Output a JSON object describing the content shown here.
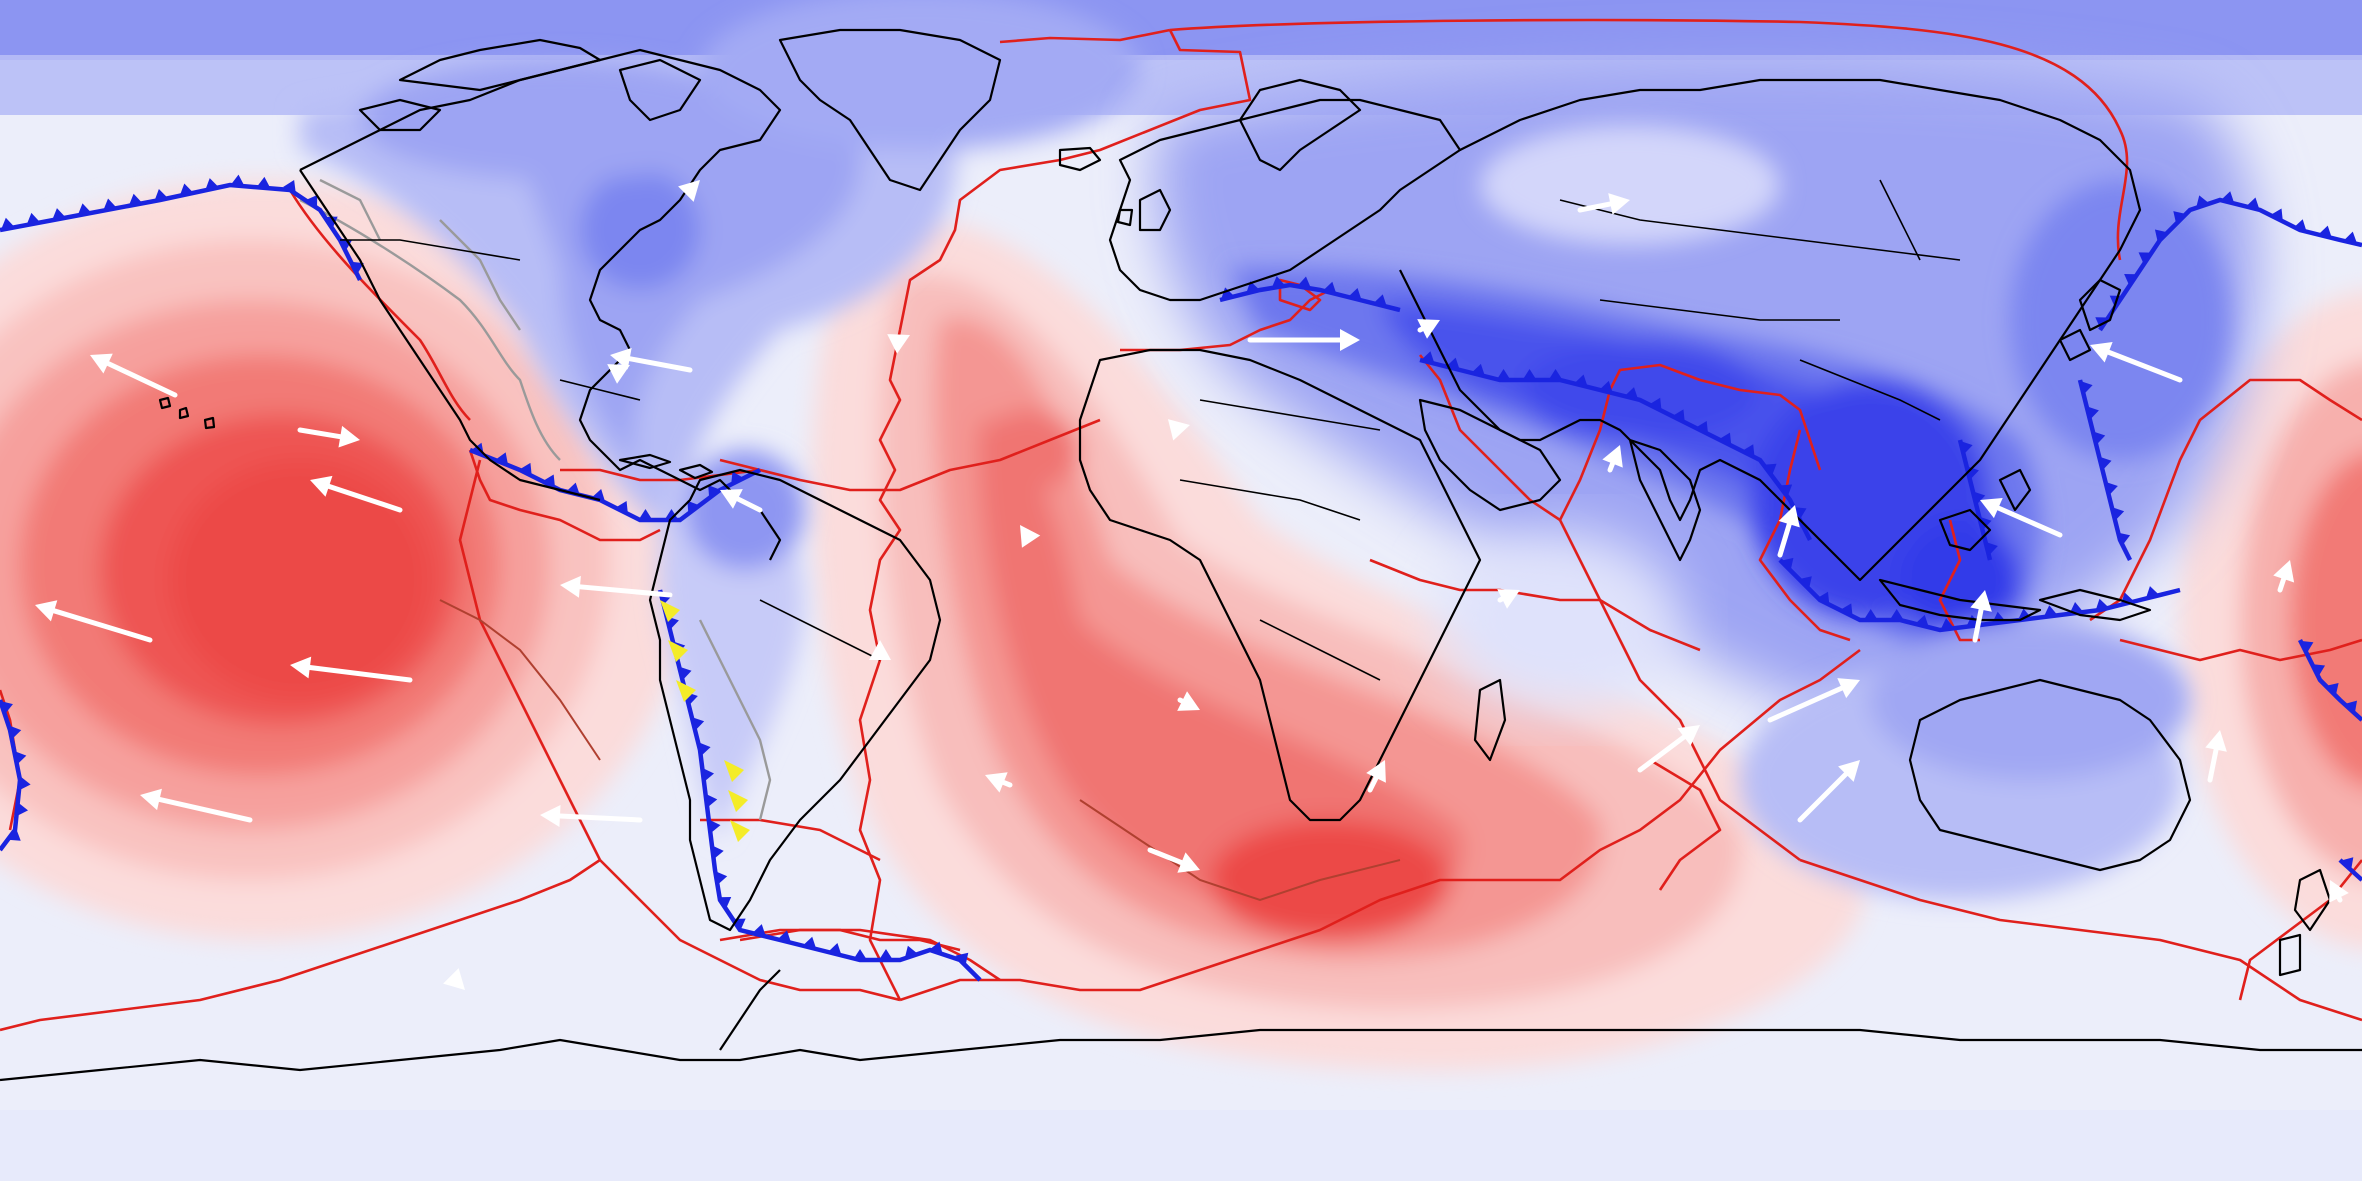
{
  "map": {
    "projection": "equirectangular",
    "field_colormap": {
      "high": "#f24545",
      "mid": "#f6f4f8",
      "low": "#2c34f2"
    },
    "colors": {
      "plate_boundary": "#e0201c",
      "subduction_zone": "#1a24e0",
      "coastline": "#000000",
      "minor_fault": "#9a9a9a",
      "highlight_teeth": "#f4ec28",
      "vector": "#ffffff"
    },
    "layers": [
      "scalar-field-contours",
      "coastlines",
      "plate-boundaries",
      "subduction-zones",
      "velocity-vectors"
    ]
  }
}
